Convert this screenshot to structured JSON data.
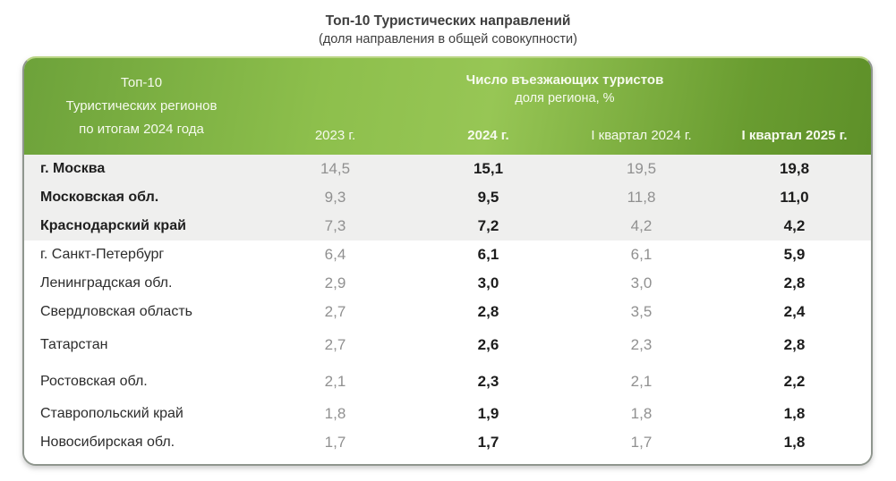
{
  "page_title": {
    "title": "Топ-10 Туристических направлений",
    "subtitle": "(доля направления в общей совокупности)"
  },
  "table": {
    "region_column_header": "Топ-10\nТуристических регионов\nпо итогам 2024 года",
    "group_header": "Число въезжающих туристов",
    "group_subheader": "доля региона, %",
    "year_columns": [
      "2023 г.",
      "2024 г.",
      "I квартал 2024 г.",
      "I квартал 2025 г."
    ],
    "rows": [
      {
        "region": "г. Москва",
        "y2023": "14,5",
        "y2024": "15,1",
        "q1_2024": "19,5",
        "q1_2025": "19,8"
      },
      {
        "region": "Московская обл.",
        "y2023": "9,3",
        "y2024": "9,5",
        "q1_2024": "11,8",
        "q1_2025": "11,0"
      },
      {
        "region": "Краснодарский край",
        "y2023": "7,3",
        "y2024": "7,2",
        "q1_2024": "4,2",
        "q1_2025": "4,2"
      },
      {
        "region": "г. Санкт-Петербург",
        "y2023": "6,4",
        "y2024": "6,1",
        "q1_2024": "6,1",
        "q1_2025": "5,9"
      },
      {
        "region": "Ленинградская обл.",
        "y2023": "2,9",
        "y2024": "3,0",
        "q1_2024": "3,0",
        "q1_2025": "2,8"
      },
      {
        "region": "Свердловская область",
        "y2023": "2,7",
        "y2024": "2,8",
        "q1_2024": "3,5",
        "q1_2025": "2,4"
      },
      {
        "region": "Татарстан",
        "y2023": "2,7",
        "y2024": "2,6",
        "q1_2024": "2,3",
        "q1_2025": "2,8"
      },
      {
        "region": "Ростовская обл.",
        "y2023": "2,1",
        "y2024": "2,3",
        "q1_2024": "2,1",
        "q1_2025": "2,2"
      },
      {
        "region": "Ставропольский край",
        "y2023": "1,8",
        "y2024": "1,9",
        "q1_2024": "1,8",
        "q1_2025": "1,8"
      },
      {
        "region": "Новосибирская обл.",
        "y2023": "1,7",
        "y2024": "1,7",
        "q1_2024": "1,7",
        "q1_2025": "1,8"
      }
    ]
  },
  "colors": {
    "header_gradient_left": "#6da23a",
    "header_gradient_mid": "#97c655",
    "header_gradient_right": "#5e9029",
    "header_text": "#f6faee",
    "highlight_row_bg": "#efefee",
    "muted_value": "#909090",
    "strong_value": "#1c1c1c",
    "card_border": "#8f968e",
    "card_border_top": "#bad584",
    "title_text": "#3e3e3e"
  },
  "chart_data": {
    "type": "table",
    "title": "Топ-10 Туристических направлений",
    "subtitle": "(доля направления в общей совокупности)",
    "value_unit": "доля региона, %",
    "categories": [
      "г. Москва",
      "Московская обл.",
      "Краснодарский край",
      "г. Санкт-Петербург",
      "Ленинградская обл.",
      "Свердловская область",
      "Татарстан",
      "Ростовская обл.",
      "Ставропольский край",
      "Новосибирская обл."
    ],
    "series": [
      {
        "name": "2023 г.",
        "values": [
          14.5,
          9.3,
          7.3,
          6.4,
          2.9,
          2.7,
          2.7,
          2.1,
          1.8,
          1.7
        ]
      },
      {
        "name": "2024 г.",
        "values": [
          15.1,
          9.5,
          7.2,
          6.1,
          3.0,
          2.8,
          2.6,
          2.3,
          1.9,
          1.7
        ]
      },
      {
        "name": "I квартал 2024 г.",
        "values": [
          19.5,
          11.8,
          4.2,
          6.1,
          3.0,
          3.5,
          2.3,
          2.1,
          1.8,
          1.7
        ]
      },
      {
        "name": "I квартал 2025 г.",
        "values": [
          19.8,
          11.0,
          4.2,
          5.9,
          2.8,
          2.4,
          2.8,
          2.2,
          1.8,
          1.8
        ]
      }
    ],
    "highlighted_rows": [
      "г. Москва",
      "Московская обл.",
      "Краснодарский край"
    ]
  }
}
